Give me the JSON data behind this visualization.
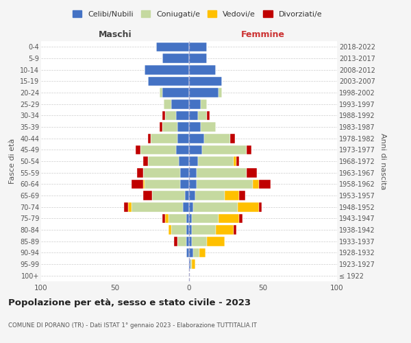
{
  "age_groups": [
    "100+",
    "95-99",
    "90-94",
    "85-89",
    "80-84",
    "75-79",
    "70-74",
    "65-69",
    "60-64",
    "55-59",
    "50-54",
    "45-49",
    "40-44",
    "35-39",
    "30-34",
    "25-29",
    "20-24",
    "15-19",
    "10-14",
    "5-9",
    "0-4"
  ],
  "birth_years": [
    "≤ 1922",
    "1923-1927",
    "1928-1932",
    "1933-1937",
    "1938-1942",
    "1943-1947",
    "1948-1952",
    "1953-1957",
    "1958-1962",
    "1963-1967",
    "1968-1972",
    "1973-1977",
    "1978-1982",
    "1983-1987",
    "1988-1992",
    "1993-1997",
    "1998-2002",
    "2003-2007",
    "2008-2012",
    "2013-2017",
    "2018-2022"
  ],
  "colors": {
    "celibi": "#4472c4",
    "coniugati": "#c5d9a0",
    "vedovi": "#ffc000",
    "divorziati": "#c00000"
  },
  "maschi": {
    "celibi": [
      0,
      0,
      2,
      2,
      2,
      2,
      4,
      3,
      6,
      6,
      7,
      9,
      8,
      8,
      9,
      12,
      18,
      28,
      30,
      18,
      22
    ],
    "coniugati": [
      0,
      0,
      0,
      6,
      10,
      12,
      35,
      22,
      24,
      25,
      21,
      24,
      18,
      10,
      7,
      5,
      2,
      0,
      0,
      0,
      0
    ],
    "vedovi": [
      0,
      0,
      0,
      0,
      2,
      2,
      2,
      0,
      1,
      0,
      0,
      0,
      0,
      0,
      0,
      0,
      0,
      0,
      0,
      0,
      0
    ],
    "divorziati": [
      0,
      0,
      0,
      2,
      0,
      2,
      3,
      6,
      8,
      4,
      3,
      3,
      2,
      2,
      2,
      0,
      0,
      0,
      0,
      0,
      0
    ]
  },
  "femmine": {
    "celibi": [
      0,
      1,
      3,
      2,
      2,
      2,
      3,
      4,
      5,
      5,
      6,
      9,
      10,
      8,
      6,
      8,
      20,
      22,
      18,
      12,
      12
    ],
    "coniugati": [
      0,
      1,
      4,
      10,
      16,
      18,
      30,
      20,
      38,
      34,
      24,
      30,
      18,
      10,
      6,
      4,
      2,
      0,
      0,
      0,
      0
    ],
    "vedovi": [
      0,
      2,
      4,
      12,
      12,
      14,
      14,
      10,
      4,
      0,
      2,
      0,
      0,
      0,
      0,
      0,
      0,
      0,
      0,
      0,
      0
    ],
    "divorziati": [
      0,
      0,
      0,
      0,
      2,
      2,
      2,
      4,
      8,
      7,
      2,
      3,
      3,
      0,
      2,
      0,
      0,
      0,
      0,
      0,
      0
    ]
  },
  "xlim": 100,
  "title": "Popolazione per età, sesso e stato civile - 2023",
  "subtitle": "COMUNE DI PORANO (TR) - Dati ISTAT 1° gennaio 2023 - Elaborazione TUTTITALIA.IT",
  "ylabel_left": "Fasce di età",
  "ylabel_right": "Anni di nascita",
  "xlabel_maschi": "Maschi",
  "xlabel_femmine": "Femmine",
  "legend_labels": [
    "Celibi/Nubili",
    "Coniugati/e",
    "Vedovi/e",
    "Divorziati/e"
  ],
  "bg_color": "#f5f5f5",
  "plot_bg": "#ffffff"
}
